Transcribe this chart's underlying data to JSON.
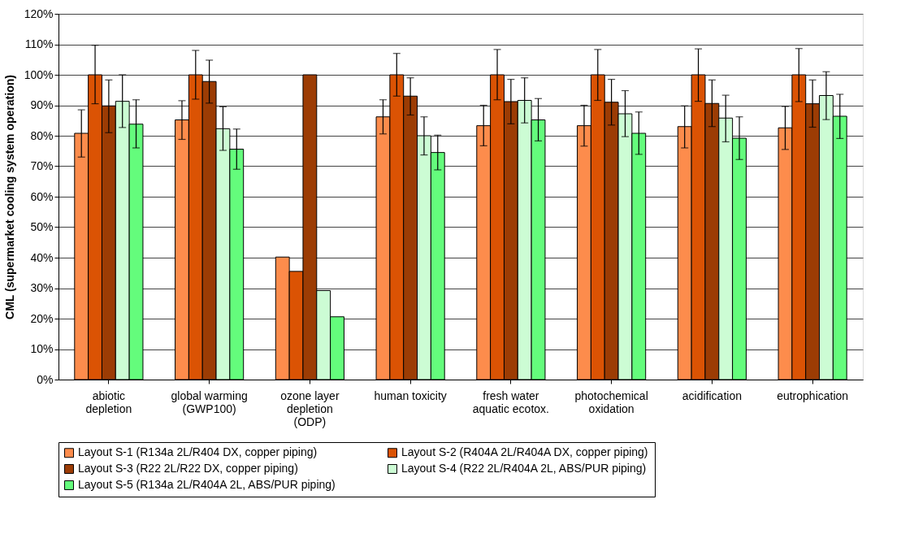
{
  "chart_data": {
    "type": "bar",
    "ylabel": "CML (supermarket cooling system operation)",
    "categories": [
      "abiotic\ndepletion",
      "global warming\n(GWP100)",
      "ozone layer\ndepletion\n(ODP)",
      "human toxicity",
      "fresh water\naquatic ecotox.",
      "photochemical\noxidation",
      "acidification",
      "eutrophication"
    ],
    "series": [
      {
        "name": "Layout S-1 (R134a 2L/R404 DX, copper piping)",
        "color": "#fd8c4c",
        "values": [
          80.8,
          85.2,
          40.2,
          86.2,
          83.3,
          83.3,
          83.0,
          82.6
        ],
        "errors": [
          [
            73,
            88.5
          ],
          [
            78.8,
            91.5
          ],
          null,
          [
            80.6,
            91.8
          ],
          [
            76.7,
            90
          ],
          [
            76.6,
            90
          ],
          [
            76,
            89.8
          ],
          [
            75.5,
            89.6
          ]
        ]
      },
      {
        "name": "Layout S-2 (R404A 2L/R404A DX, copper piping)",
        "color": "#db5304",
        "values": [
          100,
          100,
          35.5,
          100,
          100,
          100,
          100,
          100
        ],
        "errors": [
          [
            90.5,
            109.7
          ],
          [
            92,
            108
          ],
          null,
          [
            93,
            107
          ],
          [
            91.8,
            108.3
          ],
          [
            91.6,
            108.3
          ],
          [
            91.3,
            108.5
          ],
          [
            91.2,
            108.6
          ]
        ]
      },
      {
        "name": "Layout S-3 (R22 2L/R22 DX, copper piping)",
        "color": "#9c3c04",
        "values": [
          89.8,
          97.8,
          100,
          93.0,
          91.2,
          91.0,
          90.6,
          90.5
        ],
        "errors": [
          [
            81,
            98.3
          ],
          [
            90.7,
            104.8
          ],
          null,
          [
            86.8,
            99
          ],
          [
            83.9,
            98.5
          ],
          [
            83.5,
            98.5
          ],
          [
            83,
            98.3
          ],
          [
            82.8,
            98.3
          ]
        ]
      },
      {
        "name": "Layout S-4 (R22 2L/R404A 2L, ABS/PUR piping)",
        "color": "#ccfcd4",
        "values": [
          91.3,
          82.3,
          29.2,
          80.0,
          91.6,
          87.2,
          85.8,
          93.2
        ],
        "errors": [
          [
            82.7,
            100
          ],
          [
            75.2,
            89.5
          ],
          null,
          [
            73.7,
            86.2
          ],
          [
            84.2,
            99
          ],
          [
            79.7,
            94.8
          ],
          [
            78,
            93.3
          ],
          [
            85.3,
            101
          ]
        ]
      },
      {
        "name": "Layout S-5 (R134a 2L/R404A 2L, ABS/PUR piping)",
        "color": "#64fc7c",
        "values": [
          83.8,
          75.6,
          20.6,
          74.5,
          85.2,
          80.8,
          79.2,
          86.4
        ],
        "errors": [
          [
            76,
            91.8
          ],
          [
            69,
            82.2
          ],
          null,
          [
            68.8,
            80.2
          ],
          [
            78.3,
            92.2
          ],
          [
            73.9,
            87.8
          ],
          [
            72.2,
            86.2
          ],
          [
            79.1,
            93.6
          ]
        ]
      }
    ],
    "ylim": [
      0,
      120
    ],
    "yticks": [
      {
        "value": 0,
        "label": "0%"
      },
      {
        "value": 10,
        "label": "10%"
      },
      {
        "value": 20,
        "label": "20%"
      },
      {
        "value": 30,
        "label": "30%"
      },
      {
        "value": 40,
        "label": "40%"
      },
      {
        "value": 50,
        "label": "50%"
      },
      {
        "value": 60,
        "label": "60%"
      },
      {
        "value": 70,
        "label": "70%"
      },
      {
        "value": 80,
        "label": "80%"
      },
      {
        "value": 90,
        "label": "90%"
      },
      {
        "value": 100,
        "label": "100%"
      },
      {
        "value": 110,
        "label": "110%"
      },
      {
        "value": 120,
        "label": "120%"
      }
    ],
    "grid": "y",
    "legend": "bottom"
  }
}
